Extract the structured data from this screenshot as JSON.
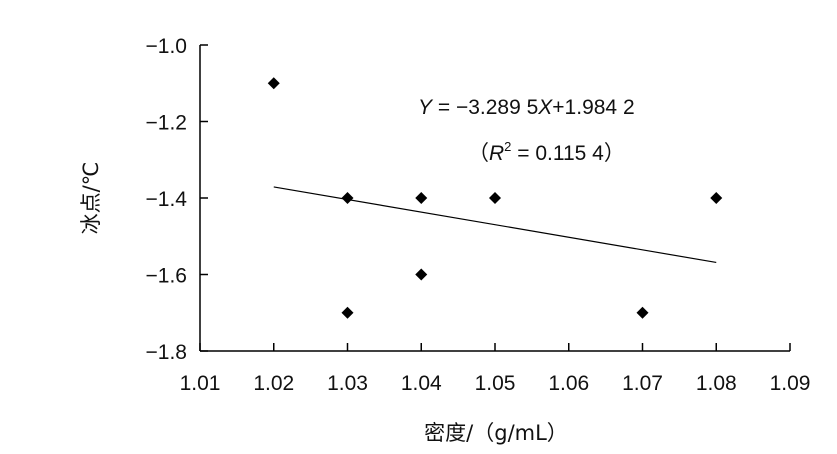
{
  "chart_data": {
    "type": "scatter",
    "xlabel": "密度/（g/mL）",
    "ylabel": "冰点/℃",
    "xlim": [
      1.01,
      1.09
    ],
    "ylim": [
      -1.8,
      -1.0
    ],
    "x_ticks": [
      "1.01",
      "1.02",
      "1.03",
      "1.04",
      "1.05",
      "1.06",
      "1.07",
      "1.08",
      "1.09"
    ],
    "y_ticks": [
      "−1.0",
      "−1.2",
      "−1.4",
      "−1.6",
      "−1.8"
    ],
    "points": [
      {
        "x": 1.02,
        "y": -1.1
      },
      {
        "x": 1.03,
        "y": -1.4
      },
      {
        "x": 1.03,
        "y": -1.7
      },
      {
        "x": 1.04,
        "y": -1.4
      },
      {
        "x": 1.04,
        "y": -1.6
      },
      {
        "x": 1.05,
        "y": -1.4
      },
      {
        "x": 1.07,
        "y": -1.7
      },
      {
        "x": 1.08,
        "y": -1.4
      }
    ],
    "trendline": {
      "type": "linear",
      "slope": -3.2895,
      "intercept": 1.9842,
      "x_range": [
        1.02,
        1.08
      ]
    },
    "annotations": {
      "equation_prefix": "Y",
      "equation_middle": " = −3.289 5",
      "equation_x": "X",
      "equation_suffix": "+1.984 2",
      "r2_open": "（",
      "r2_symbol": "R",
      "r2_exp": "2",
      "r2_value": " = 0.115 4）"
    },
    "grid": false,
    "marker": "diamond",
    "marker_color": "#000000",
    "line_color": "#000000"
  }
}
